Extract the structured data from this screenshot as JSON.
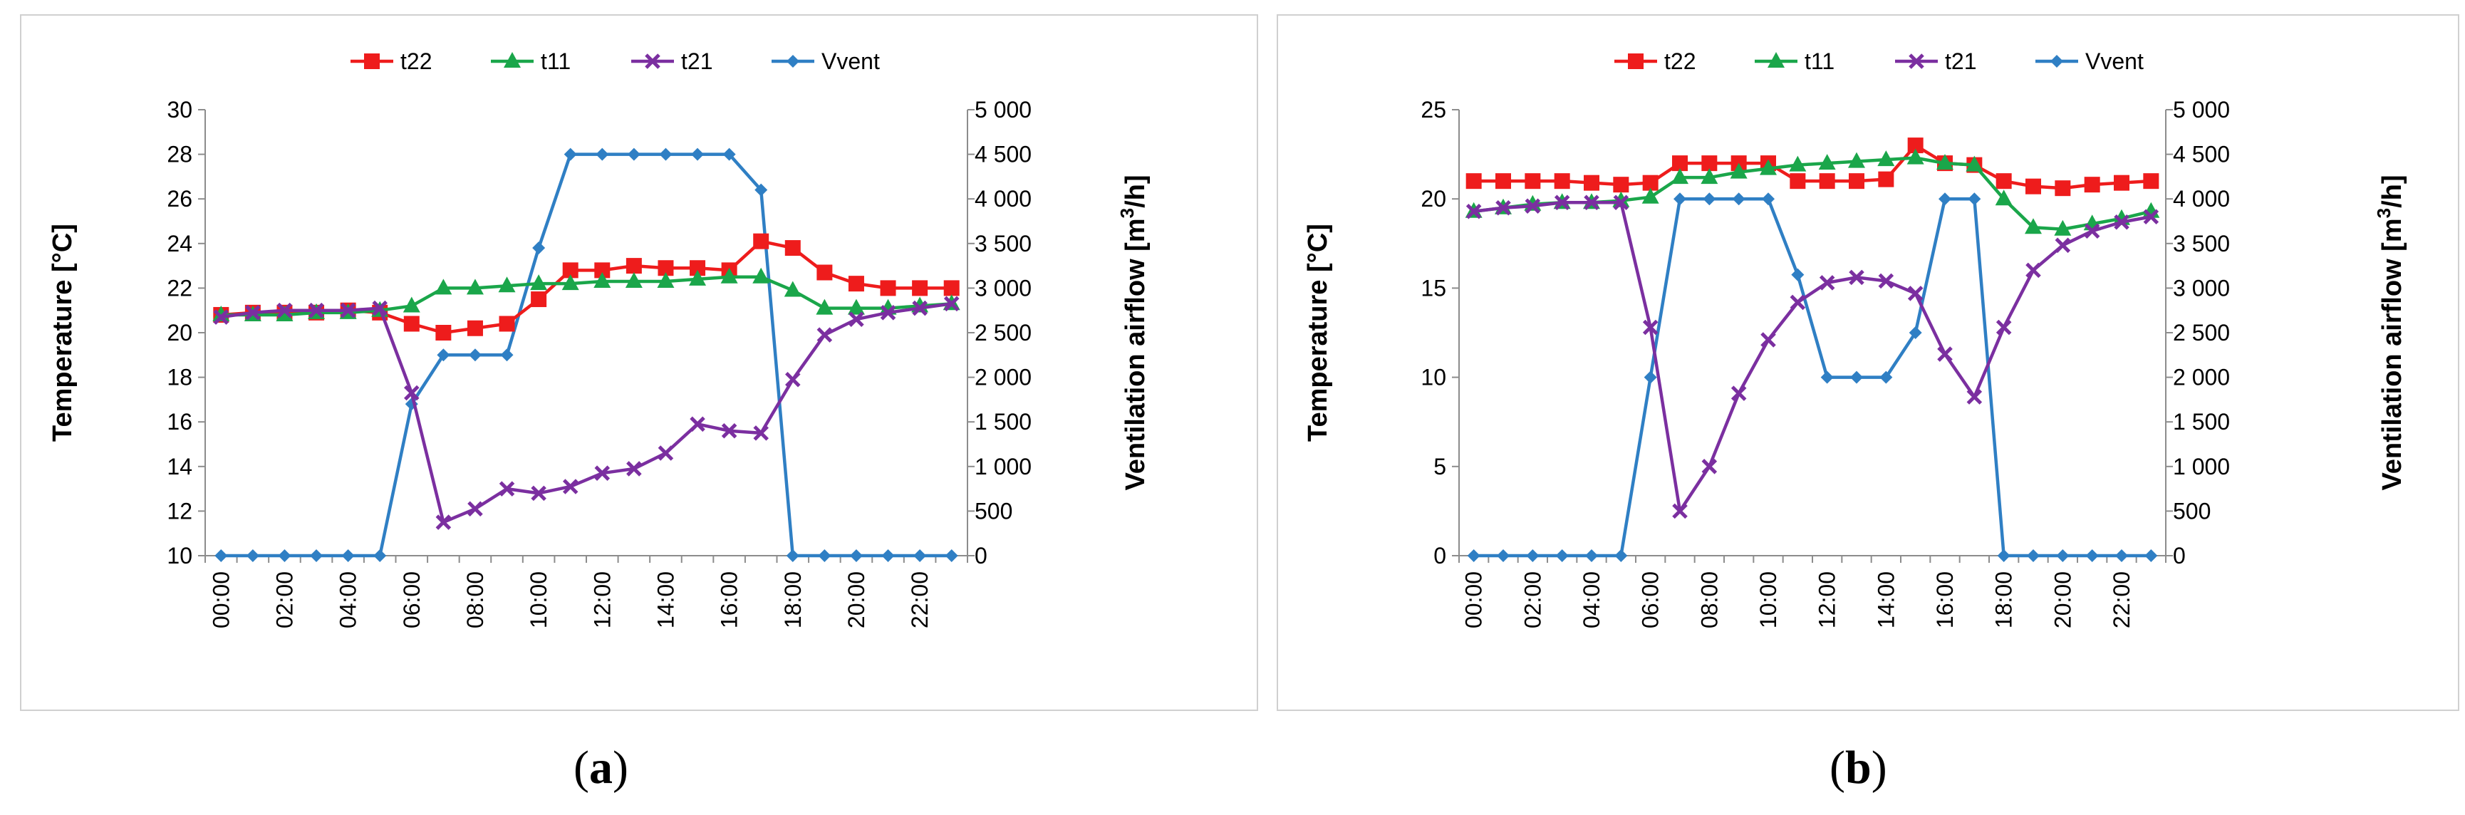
{
  "figure": {
    "captions": [
      {
        "open": "(",
        "letter": "a",
        "close": ")"
      },
      {
        "open": "(",
        "letter": "b",
        "close": ")"
      }
    ]
  },
  "chart_data": [
    {
      "type": "line",
      "panel": "a",
      "title": "",
      "legend_position": "top",
      "ylabel": "Temperature [°C]",
      "y2label_main": "Ventilation airflow [m",
      "y2label_sup": "3",
      "y2label_tail": "/h]",
      "ylim": [
        10,
        30
      ],
      "yticks": [
        10,
        12,
        14,
        16,
        18,
        20,
        22,
        24,
        26,
        28,
        30
      ],
      "y2lim": [
        0,
        5000
      ],
      "y2ticks": [
        0,
        500,
        1000,
        1500,
        2000,
        2500,
        3000,
        3500,
        4000,
        4500,
        5000
      ],
      "y2ticklabels": [
        "0",
        "500",
        "1 000",
        "1 500",
        "2 000",
        "2 500",
        "3 000",
        "3 500",
        "4 000",
        "4 500",
        "5 000"
      ],
      "x": [
        0,
        1,
        2,
        3,
        4,
        5,
        6,
        7,
        8,
        9,
        10,
        11,
        12,
        13,
        14,
        15,
        16,
        17,
        18,
        19,
        20,
        21,
        22,
        23
      ],
      "xticklabels": [
        "00:00",
        "02:00",
        "04:00",
        "06:00",
        "08:00",
        "10:00",
        "12:00",
        "14:00",
        "16:00",
        "18:00",
        "20:00",
        "22:00"
      ],
      "series": [
        {
          "name": "t22",
          "axis": "left",
          "color": "#ee1c1c",
          "marker": "square",
          "values": [
            20.8,
            20.9,
            20.9,
            20.9,
            21.0,
            20.9,
            20.4,
            20.0,
            20.2,
            20.4,
            21.5,
            22.8,
            22.8,
            23.0,
            22.9,
            22.9,
            22.8,
            24.1,
            23.8,
            22.7,
            22.2,
            22.0,
            22.0,
            22.0
          ]
        },
        {
          "name": "t11",
          "axis": "left",
          "color": "#1aa64a",
          "marker": "triangle",
          "values": [
            20.8,
            20.8,
            20.8,
            20.9,
            20.9,
            21.0,
            21.2,
            22.0,
            22.0,
            22.1,
            22.2,
            22.2,
            22.3,
            22.3,
            22.3,
            22.4,
            22.5,
            22.5,
            21.9,
            21.1,
            21.1,
            21.1,
            21.2,
            21.3
          ]
        },
        {
          "name": "t21",
          "axis": "left",
          "color": "#7b2fa0",
          "marker": "x",
          "values": [
            20.7,
            20.9,
            21.0,
            21.0,
            21.0,
            21.1,
            17.3,
            11.5,
            12.1,
            13.0,
            12.8,
            13.1,
            13.7,
            13.9,
            14.6,
            15.9,
            15.6,
            15.5,
            17.9,
            19.9,
            20.6,
            20.9,
            21.1,
            21.3
          ]
        },
        {
          "name": "Vvent",
          "axis": "right",
          "color": "#2f7fc4",
          "marker": "diamond",
          "values": [
            0,
            0,
            0,
            0,
            0,
            0,
            1700,
            2250,
            2250,
            2250,
            3450,
            4500,
            4500,
            4500,
            4500,
            4500,
            4500,
            4100,
            0,
            0,
            0,
            0,
            0,
            0
          ]
        }
      ]
    },
    {
      "type": "line",
      "panel": "b",
      "title": "",
      "legend_position": "top",
      "ylabel": "Temperature [°C]",
      "y2label_main": "Ventilation airflow [m",
      "y2label_sup": "3",
      "y2label_tail": "/h]",
      "ylim": [
        0,
        25
      ],
      "yticks": [
        0,
        5,
        10,
        15,
        20,
        25
      ],
      "y2lim": [
        0,
        5000
      ],
      "y2ticks": [
        0,
        500,
        1000,
        1500,
        2000,
        2500,
        3000,
        3500,
        4000,
        4500,
        5000
      ],
      "y2ticklabels": [
        "0",
        "500",
        "1 000",
        "1 500",
        "2 000",
        "2 500",
        "3 000",
        "3 500",
        "4 000",
        "4 500",
        "5 000"
      ],
      "x": [
        0,
        1,
        2,
        3,
        4,
        5,
        6,
        7,
        8,
        9,
        10,
        11,
        12,
        13,
        14,
        15,
        16,
        17,
        18,
        19,
        20,
        21,
        22,
        23
      ],
      "xticklabels": [
        "00:00",
        "02:00",
        "04:00",
        "06:00",
        "08:00",
        "10:00",
        "12:00",
        "14:00",
        "16:00",
        "18:00",
        "20:00",
        "22:00"
      ],
      "series": [
        {
          "name": "t22",
          "axis": "left",
          "color": "#ee1c1c",
          "marker": "square",
          "values": [
            21.0,
            21.0,
            21.0,
            21.0,
            20.9,
            20.8,
            20.9,
            22.0,
            22.0,
            22.0,
            22.0,
            21.0,
            21.0,
            21.0,
            21.1,
            23.0,
            22.0,
            21.9,
            21.0,
            20.7,
            20.6,
            20.8,
            20.9,
            21.0
          ]
        },
        {
          "name": "t11",
          "axis": "left",
          "color": "#1aa64a",
          "marker": "triangle",
          "values": [
            19.3,
            19.5,
            19.7,
            19.8,
            19.8,
            19.9,
            20.1,
            21.2,
            21.2,
            21.5,
            21.7,
            21.9,
            22.0,
            22.1,
            22.2,
            22.3,
            22.0,
            21.9,
            20.0,
            18.4,
            18.3,
            18.6,
            18.9,
            19.3
          ]
        },
        {
          "name": "t21",
          "axis": "left",
          "color": "#7b2fa0",
          "marker": "x",
          "values": [
            19.3,
            19.5,
            19.6,
            19.8,
            19.8,
            19.8,
            12.8,
            2.5,
            5.0,
            9.1,
            12.1,
            14.2,
            15.3,
            15.6,
            15.4,
            14.7,
            11.3,
            8.9,
            12.8,
            16.0,
            17.4,
            18.2,
            18.7,
            19.0
          ]
        },
        {
          "name": "Vvent",
          "axis": "right",
          "color": "#2f7fc4",
          "marker": "diamond",
          "values": [
            0,
            0,
            0,
            0,
            0,
            0,
            2000,
            4000,
            4000,
            4000,
            4000,
            3150,
            2000,
            2000,
            2000,
            2500,
            4000,
            4000,
            0,
            0,
            0,
            0,
            0,
            0
          ]
        }
      ]
    }
  ]
}
